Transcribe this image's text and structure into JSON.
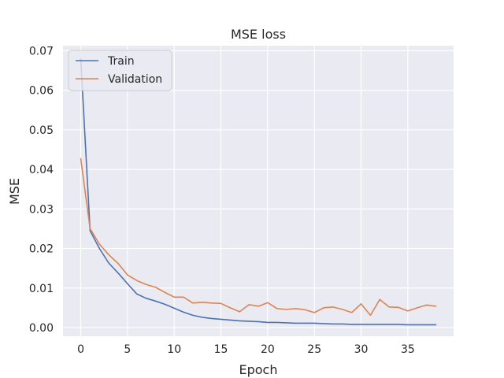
{
  "chart_data": {
    "type": "line",
    "title": "MSE loss",
    "xlabel": "Epoch",
    "ylabel": "MSE",
    "xlim": [
      -1.9,
      39.9
    ],
    "ylim": [
      -0.0022,
      0.0713
    ],
    "xticks": [
      0,
      5,
      10,
      15,
      20,
      25,
      30,
      35
    ],
    "yticks": [
      0.0,
      0.01,
      0.02,
      0.03,
      0.04,
      0.05,
      0.06,
      0.07
    ],
    "ytick_labels": [
      "0.00",
      "0.01",
      "0.02",
      "0.03",
      "0.04",
      "0.05",
      "0.06",
      "0.07"
    ],
    "grid": true,
    "legend_position": "top-left",
    "colors": {
      "background": "#eaeaf2",
      "grid": "#ffffff"
    },
    "x": [
      0,
      1,
      2,
      3,
      4,
      5,
      6,
      7,
      8,
      9,
      10,
      11,
      12,
      13,
      14,
      15,
      16,
      17,
      18,
      19,
      20,
      21,
      22,
      23,
      24,
      25,
      26,
      27,
      28,
      29,
      30,
      31,
      32,
      33,
      34,
      35,
      36,
      37,
      38
    ],
    "series": [
      {
        "name": "Train",
        "color": "#4c72b0",
        "values": [
          0.068,
          0.0245,
          0.02,
          0.0163,
          0.0138,
          0.0111,
          0.0085,
          0.0074,
          0.0067,
          0.0059,
          0.0049,
          0.0039,
          0.0031,
          0.0026,
          0.0023,
          0.0021,
          0.0019,
          0.0017,
          0.0016,
          0.0015,
          0.0013,
          0.0013,
          0.0012,
          0.0011,
          0.0011,
          0.0011,
          0.001,
          0.0009,
          0.0009,
          0.0008,
          0.0008,
          0.0008,
          0.0008,
          0.0008,
          0.0008,
          0.0007,
          0.0007,
          0.0007,
          0.0007
        ]
      },
      {
        "name": "Validation",
        "color": "#dd8452",
        "values": [
          0.0427,
          0.025,
          0.0211,
          0.0184,
          0.0162,
          0.0133,
          0.0119,
          0.0109,
          0.0102,
          0.0089,
          0.0077,
          0.0077,
          0.0062,
          0.0064,
          0.0062,
          0.0061,
          0.005,
          0.004,
          0.0058,
          0.0054,
          0.0063,
          0.0048,
          0.0046,
          0.0048,
          0.0045,
          0.0038,
          0.005,
          0.0052,
          0.0046,
          0.0038,
          0.006,
          0.0031,
          0.0071,
          0.0052,
          0.0051,
          0.0042,
          0.005,
          0.0057,
          0.0054
        ]
      }
    ]
  }
}
